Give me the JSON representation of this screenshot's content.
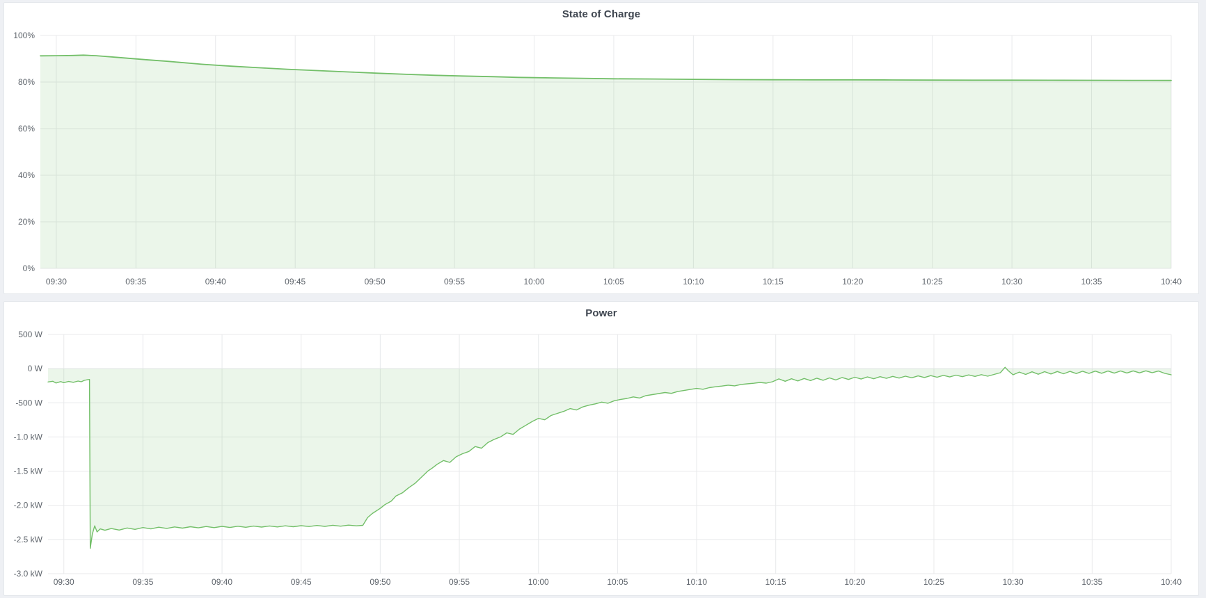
{
  "page": {
    "background": "#eef0f4",
    "panel_background": "#ffffff",
    "panel_border": "#e4e7eb",
    "grid_color": "#e8e9eb",
    "axis_text_color": "#5f656c",
    "title_color": "#3f4650",
    "accent_green": "#73bf69"
  },
  "chart_data": [
    {
      "id": "soc",
      "type": "area",
      "title": "State of Charge",
      "grid": true,
      "legend": "none",
      "xlabel": "",
      "ylabel": "%",
      "ylim": [
        0,
        100
      ],
      "x_range_minutes": [
        0,
        71
      ],
      "x_start_time": "09:29",
      "x_tick_minutes": [
        1,
        6,
        11,
        16,
        21,
        26,
        31,
        36,
        41,
        46,
        51,
        56,
        61,
        66,
        71
      ],
      "x_tick_labels": [
        "09:30",
        "09:35",
        "09:40",
        "09:45",
        "09:50",
        "09:55",
        "10:00",
        "10:05",
        "10:10",
        "10:15",
        "10:20",
        "10:25",
        "10:30",
        "10:35",
        "10:40"
      ],
      "y_tick_values": [
        100,
        80,
        60,
        40,
        20,
        0
      ],
      "y_tick_labels": [
        "100%",
        "80%",
        "60%",
        "40%",
        "20%",
        "0%"
      ],
      "baseline": 0,
      "series": [
        {
          "name": "State of Charge",
          "unit": "percent",
          "color": "#73bf69",
          "fill": "rgba(115,191,105,0.14)",
          "points": [
            [
              0,
              91.25
            ],
            [
              1,
              91.3
            ],
            [
              2,
              91.4
            ],
            [
              2.7,
              91.55
            ],
            [
              3.5,
              91.3
            ],
            [
              4,
              91.05
            ],
            [
              5,
              90.5
            ],
            [
              6.6,
              89.6
            ],
            [
              8,
              88.9
            ],
            [
              10.2,
              87.6
            ],
            [
              12,
              86.8
            ],
            [
              13.9,
              86.1
            ],
            [
              15.5,
              85.5
            ],
            [
              17.5,
              84.9
            ],
            [
              19.5,
              84.3
            ],
            [
              21.2,
              83.8
            ],
            [
              23,
              83.3
            ],
            [
              24.8,
              82.9
            ],
            [
              26.5,
              82.6
            ],
            [
              28.5,
              82.3
            ],
            [
              30,
              82.0
            ],
            [
              32,
              81.8
            ],
            [
              34,
              81.6
            ],
            [
              36,
              81.4
            ],
            [
              38.5,
              81.3
            ],
            [
              41,
              81.15
            ],
            [
              43.5,
              81.05
            ],
            [
              46,
              81.0
            ],
            [
              48.5,
              80.97
            ],
            [
              51,
              80.95
            ],
            [
              53.5,
              80.9
            ],
            [
              56,
              80.85
            ],
            [
              58.5,
              80.82
            ],
            [
              61,
              80.8
            ],
            [
              63.5,
              80.78
            ],
            [
              66,
              80.75
            ],
            [
              68.5,
              80.72
            ],
            [
              71,
              80.7
            ]
          ]
        }
      ]
    },
    {
      "id": "power",
      "type": "area",
      "title": "Power",
      "grid": true,
      "legend": "none",
      "xlabel": "",
      "ylabel": "W",
      "ylim": [
        -3000,
        500
      ],
      "x_range_minutes": [
        0,
        71
      ],
      "x_start_time": "09:29",
      "x_tick_minutes": [
        1,
        6,
        11,
        16,
        21,
        26,
        31,
        36,
        41,
        46,
        51,
        56,
        61,
        66,
        71
      ],
      "x_tick_labels": [
        "09:30",
        "09:35",
        "09:40",
        "09:45",
        "09:50",
        "09:55",
        "10:00",
        "10:05",
        "10:10",
        "10:15",
        "10:20",
        "10:25",
        "10:30",
        "10:35",
        "10:40"
      ],
      "y_tick_values": [
        500,
        0,
        -500,
        -1000,
        -1500,
        -2000,
        -2500,
        -3000
      ],
      "y_tick_labels": [
        "500 W",
        "0 W",
        "-500 W",
        "-1.0 kW",
        "-1.5 kW",
        "-2.0 kW",
        "-2.5 kW",
        "-3.0 kW"
      ],
      "baseline": 0,
      "series": [
        {
          "name": "Power",
          "unit": "W",
          "color": "#73bf69",
          "fill": "rgba(115,191,105,0.14)",
          "points": [
            [
              0,
              -195
            ],
            [
              0.3,
              -185
            ],
            [
              0.5,
              -210
            ],
            [
              0.8,
              -190
            ],
            [
              1,
              -205
            ],
            [
              1.3,
              -188
            ],
            [
              1.6,
              -200
            ],
            [
              1.9,
              -182
            ],
            [
              2.1,
              -192
            ],
            [
              2.3,
              -172
            ],
            [
              2.5,
              -162
            ],
            [
              2.62,
              -158
            ],
            [
              2.67,
              -2630
            ],
            [
              2.8,
              -2420
            ],
            [
              2.95,
              -2300
            ],
            [
              3.1,
              -2390
            ],
            [
              3.3,
              -2345
            ],
            [
              3.6,
              -2365
            ],
            [
              4,
              -2340
            ],
            [
              4.5,
              -2362
            ],
            [
              5,
              -2332
            ],
            [
              5.5,
              -2352
            ],
            [
              6,
              -2325
            ],
            [
              6.5,
              -2345
            ],
            [
              7,
              -2320
            ],
            [
              7.5,
              -2338
            ],
            [
              8,
              -2316
            ],
            [
              8.5,
              -2334
            ],
            [
              9,
              -2313
            ],
            [
              9.5,
              -2330
            ],
            [
              10,
              -2310
            ],
            [
              10.5,
              -2326
            ],
            [
              11,
              -2308
            ],
            [
              11.5,
              -2324
            ],
            [
              12,
              -2306
            ],
            [
              12.5,
              -2321
            ],
            [
              13,
              -2304
            ],
            [
              13.5,
              -2318
            ],
            [
              14,
              -2302
            ],
            [
              14.5,
              -2316
            ],
            [
              15,
              -2300
            ],
            [
              15.5,
              -2313
            ],
            [
              16,
              -2298
            ],
            [
              16.5,
              -2310
            ],
            [
              17,
              -2295
            ],
            [
              17.5,
              -2308
            ],
            [
              18,
              -2292
            ],
            [
              18.5,
              -2305
            ],
            [
              19,
              -2290
            ],
            [
              19.5,
              -2300
            ],
            [
              19.9,
              -2293
            ],
            [
              20.2,
              -2180
            ],
            [
              20.5,
              -2120
            ],
            [
              21,
              -2045
            ],
            [
              21.3,
              -1990
            ],
            [
              21.7,
              -1938
            ],
            [
              22,
              -1862
            ],
            [
              22.4,
              -1818
            ],
            [
              22.8,
              -1742
            ],
            [
              23.2,
              -1678
            ],
            [
              23.5,
              -1612
            ],
            [
              24,
              -1500
            ],
            [
              24.3,
              -1452
            ],
            [
              24.6,
              -1400
            ],
            [
              25,
              -1345
            ],
            [
              25.4,
              -1372
            ],
            [
              25.8,
              -1290
            ],
            [
              26.2,
              -1245
            ],
            [
              26.6,
              -1212
            ],
            [
              27,
              -1140
            ],
            [
              27.4,
              -1165
            ],
            [
              27.8,
              -1082
            ],
            [
              28.2,
              -1035
            ],
            [
              28.6,
              -1000
            ],
            [
              29,
              -940
            ],
            [
              29.4,
              -962
            ],
            [
              29.8,
              -885
            ],
            [
              30.2,
              -830
            ],
            [
              30.6,
              -775
            ],
            [
              31,
              -728
            ],
            [
              31.4,
              -748
            ],
            [
              31.8,
              -685
            ],
            [
              32.2,
              -655
            ],
            [
              32.6,
              -625
            ],
            [
              33,
              -585
            ],
            [
              33.4,
              -605
            ],
            [
              33.8,
              -560
            ],
            [
              34.2,
              -535
            ],
            [
              34.6,
              -515
            ],
            [
              35,
              -490
            ],
            [
              35.4,
              -506
            ],
            [
              35.8,
              -470
            ],
            [
              36.2,
              -450
            ],
            [
              36.6,
              -436
            ],
            [
              37,
              -414
            ],
            [
              37.4,
              -430
            ],
            [
              37.8,
              -394
            ],
            [
              38.2,
              -380
            ],
            [
              38.6,
              -365
            ],
            [
              39,
              -350
            ],
            [
              39.4,
              -362
            ],
            [
              39.8,
              -335
            ],
            [
              40.2,
              -320
            ],
            [
              40.6,
              -305
            ],
            [
              41,
              -290
            ],
            [
              41.4,
              -302
            ],
            [
              41.8,
              -278
            ],
            [
              42.2,
              -265
            ],
            [
              42.6,
              -255
            ],
            [
              43,
              -242
            ],
            [
              43.4,
              -252
            ],
            [
              43.8,
              -232
            ],
            [
              44.2,
              -222
            ],
            [
              44.6,
              -214
            ],
            [
              45,
              -202
            ],
            [
              45.4,
              -212
            ],
            [
              45.8,
              -192
            ],
            [
              46.2,
              -150
            ],
            [
              46.6,
              -185
            ],
            [
              47,
              -148
            ],
            [
              47.4,
              -180
            ],
            [
              47.8,
              -144
            ],
            [
              48.2,
              -175
            ],
            [
              48.6,
              -140
            ],
            [
              49,
              -170
            ],
            [
              49.4,
              -136
            ],
            [
              49.8,
              -165
            ],
            [
              50.2,
              -130
            ],
            [
              50.6,
              -158
            ],
            [
              51,
              -126
            ],
            [
              51.4,
              -152
            ],
            [
              51.8,
              -122
            ],
            [
              52.2,
              -148
            ],
            [
              52.6,
              -118
            ],
            [
              53,
              -142
            ],
            [
              53.4,
              -114
            ],
            [
              53.8,
              -138
            ],
            [
              54.2,
              -110
            ],
            [
              54.6,
              -134
            ],
            [
              55,
              -106
            ],
            [
              55.4,
              -130
            ],
            [
              55.8,
              -102
            ],
            [
              56.2,
              -126
            ],
            [
              56.6,
              -98
            ],
            [
              57,
              -122
            ],
            [
              57.4,
              -95
            ],
            [
              57.8,
              -118
            ],
            [
              58.2,
              -92
            ],
            [
              58.6,
              -114
            ],
            [
              59,
              -88
            ],
            [
              59.4,
              -110
            ],
            [
              59.8,
              -85
            ],
            [
              60.2,
              -60
            ],
            [
              60.5,
              20
            ],
            [
              60.7,
              -30
            ],
            [
              61,
              -90
            ],
            [
              61.4,
              -50
            ],
            [
              61.8,
              -85
            ],
            [
              62.2,
              -46
            ],
            [
              62.6,
              -82
            ],
            [
              63,
              -44
            ],
            [
              63.4,
              -78
            ],
            [
              63.8,
              -42
            ],
            [
              64.2,
              -75
            ],
            [
              64.6,
              -40
            ],
            [
              65,
              -72
            ],
            [
              65.4,
              -38
            ],
            [
              65.8,
              -70
            ],
            [
              66.2,
              -36
            ],
            [
              66.6,
              -68
            ],
            [
              67,
              -35
            ],
            [
              67.4,
              -66
            ],
            [
              67.8,
              -34
            ],
            [
              68.2,
              -64
            ],
            [
              68.6,
              -33
            ],
            [
              69,
              -62
            ],
            [
              69.4,
              -32
            ],
            [
              69.8,
              -60
            ],
            [
              70.2,
              -35
            ],
            [
              70.6,
              -70
            ],
            [
              71,
              -90
            ]
          ]
        }
      ]
    }
  ]
}
